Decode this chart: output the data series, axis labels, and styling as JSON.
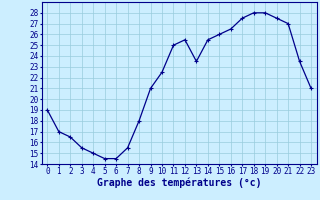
{
  "x": [
    0,
    1,
    2,
    3,
    4,
    5,
    6,
    7,
    8,
    9,
    10,
    11,
    12,
    13,
    14,
    15,
    16,
    17,
    18,
    19,
    20,
    21,
    22,
    23
  ],
  "y": [
    19,
    17,
    16.5,
    15.5,
    15,
    14.5,
    14.5,
    15.5,
    18,
    21,
    22.5,
    25,
    25.5,
    23.5,
    25.5,
    26,
    26.5,
    27.5,
    28,
    28,
    27.5,
    27,
    23.5,
    21
  ],
  "line_color": "#00008b",
  "marker": "+",
  "marker_size": 3,
  "marker_linewidth": 0.8,
  "bg_color": "#cceeff",
  "grid_color": "#99ccdd",
  "xlabel": "Graphe des températures (°c)",
  "ylim": [
    14,
    29
  ],
  "xlim": [
    -0.5,
    23.5
  ],
  "yticks": [
    14,
    15,
    16,
    17,
    18,
    19,
    20,
    21,
    22,
    23,
    24,
    25,
    26,
    27,
    28
  ],
  "xticks": [
    0,
    1,
    2,
    3,
    4,
    5,
    6,
    7,
    8,
    9,
    10,
    11,
    12,
    13,
    14,
    15,
    16,
    17,
    18,
    19,
    20,
    21,
    22,
    23
  ],
  "tick_label_fontsize": 5.5,
  "xlabel_fontsize": 7,
  "tick_color": "#00008b",
  "axis_color": "#00008b",
  "linewidth": 0.9
}
